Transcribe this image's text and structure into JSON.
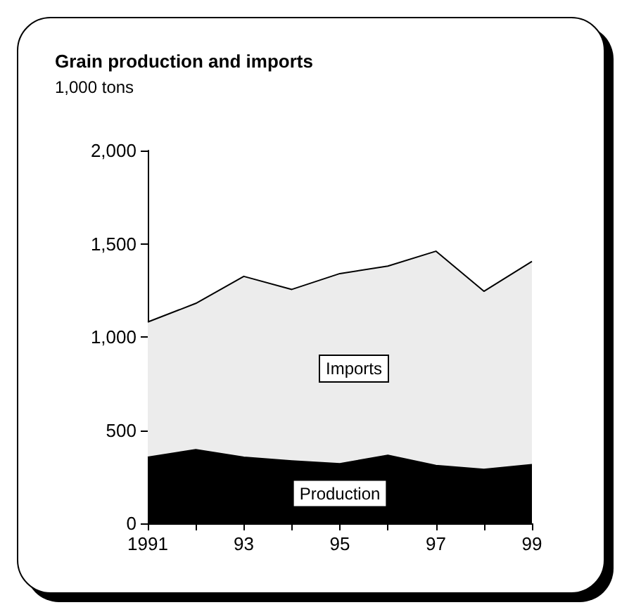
{
  "chart_data": {
    "type": "area",
    "title": "Grain production and imports",
    "subtitle": "1,000 tons",
    "stacked": true,
    "x": [
      1991,
      1992,
      1993,
      1994,
      1995,
      1996,
      1997,
      1998,
      1999
    ],
    "series": [
      {
        "name": "Production",
        "color": "#000000",
        "values": [
          355,
          395,
          355,
          335,
          320,
          365,
          310,
          290,
          315
        ]
      },
      {
        "name": "Imports",
        "color": "#ececec",
        "values": [
          725,
          785,
          970,
          920,
          1020,
          1015,
          1150,
          955,
          1090
        ]
      }
    ],
    "xlim": [
      1991,
      1999
    ],
    "xticks": [
      1991,
      {
        "value": 1992,
        "label": null
      },
      {
        "value": 1993,
        "label": "93"
      },
      {
        "value": 1994,
        "label": null
      },
      {
        "value": 1995,
        "label": "95"
      },
      {
        "value": 1996,
        "label": null
      },
      {
        "value": 1997,
        "label": "97"
      },
      {
        "value": 1998,
        "label": null
      },
      {
        "value": 1999,
        "label": "99"
      }
    ],
    "ylim": [
      0,
      2000
    ],
    "yticks": [
      {
        "value": 0,
        "label": "0"
      },
      {
        "value": 500,
        "label": "500"
      },
      {
        "value": 1000,
        "label": "1,000"
      },
      {
        "value": 1500,
        "label": "1,500"
      },
      {
        "value": 2000,
        "label": "2,000"
      }
    ],
    "grid": false,
    "legend": false,
    "marker": "none",
    "line_style": "solid"
  }
}
